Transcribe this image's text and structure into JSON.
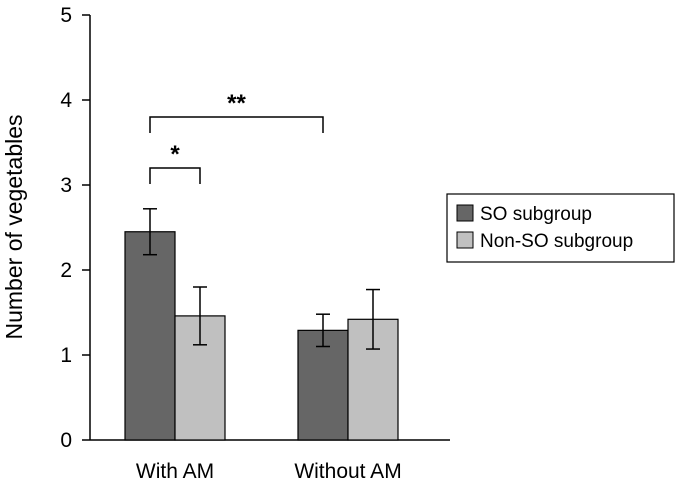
{
  "chart_data": {
    "type": "bar",
    "title": "",
    "xlabel": "",
    "ylabel": "Number of vegetables",
    "ylim": [
      0,
      5
    ],
    "yticks": [
      "0",
      "1",
      "2",
      "3",
      "4",
      "5"
    ],
    "categories": [
      "With AM",
      "Without AM"
    ],
    "series": [
      {
        "name": "SO subgroup",
        "values": [
          2.45,
          1.29
        ],
        "err": [
          0.27,
          0.19
        ],
        "color": "#666666"
      },
      {
        "name": "Non-SO subgroup",
        "values": [
          1.46,
          1.42
        ],
        "err": [
          0.34,
          0.35
        ],
        "color": "#c0c0c0"
      }
    ],
    "significance": [
      {
        "label": "*",
        "between": "With AM: SO subgroup vs Non-SO subgroup",
        "y": 3.2
      },
      {
        "label": "**",
        "between": "SO subgroup: With AM vs Without AM",
        "y": 3.8
      }
    ],
    "legend": {
      "placement": "right"
    },
    "grid": false
  }
}
